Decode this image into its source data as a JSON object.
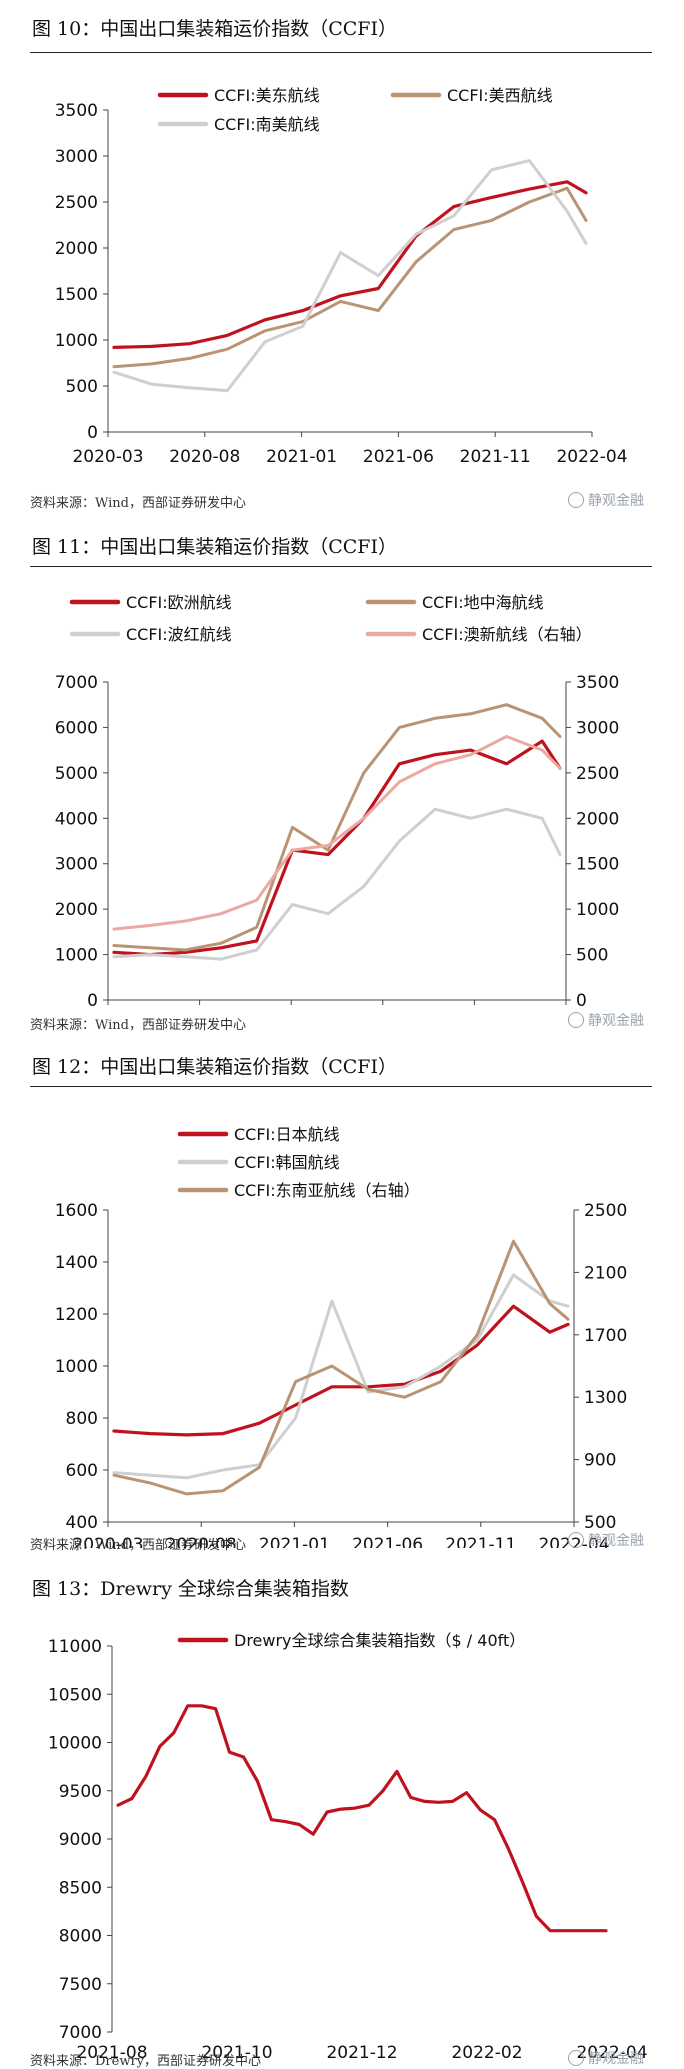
{
  "brand": "静观金融",
  "colors": {
    "red": "#c0121e",
    "tan": "#b89474",
    "gray": "#cfcfcf",
    "pink": "#eca9a1"
  },
  "panels": [
    {
      "title": "图 10：中国出口集装箱运价指数（CCFI）",
      "source": "资料来源：Wind，西部证券研发中心"
    },
    {
      "title": "图 11：中国出口集装箱运价指数（CCFI）",
      "source": "资料来源：Wind，西部证券研发中心"
    },
    {
      "title": "图 12：中国出口集装箱运价指数（CCFI）",
      "source": "资料来源：Wind，西部证券研发中心"
    },
    {
      "title": "图 13：Drewry 全球综合集装箱指数",
      "source": "资料来源：Drewry，西部证券研发中心"
    }
  ],
  "chart_data": [
    {
      "type": "line",
      "title": "图 10：中国出口集装箱运价指数（CCFI）",
      "x_labels": [
        "2020-03",
        "2020-08",
        "2021-01",
        "2021-06",
        "2021-11",
        "2022-04"
      ],
      "ylim": [
        0,
        3500
      ],
      "yticks": [
        0,
        500,
        1000,
        1500,
        2000,
        2500,
        3000,
        3500
      ],
      "x": [
        0,
        2,
        4,
        6,
        8,
        10,
        12,
        14,
        16,
        18,
        20,
        22,
        24,
        25
      ],
      "series": [
        {
          "name": "CCFI:美东航线",
          "color": "red",
          "axis": "left",
          "values": [
            920,
            930,
            960,
            1050,
            1220,
            1320,
            1480,
            1560,
            2130,
            2450,
            2550,
            2640,
            2720,
            2600
          ]
        },
        {
          "name": "CCFI:美西航线",
          "color": "tan",
          "axis": "left",
          "values": [
            710,
            740,
            800,
            900,
            1100,
            1200,
            1420,
            1320,
            1850,
            2200,
            2300,
            2500,
            2650,
            2300
          ]
        },
        {
          "name": "CCFI:南美航线",
          "color": "gray",
          "axis": "left",
          "values": [
            650,
            520,
            480,
            450,
            980,
            1150,
            1950,
            1700,
            2150,
            2350,
            2850,
            2950,
            2400,
            2050
          ]
        }
      ]
    },
    {
      "type": "line",
      "title": "图 11：中国出口集装箱运价指数（CCFI）",
      "x_labels": [
        "2020-03",
        "2020-08",
        "2021-01",
        "2021-06",
        "2021-11",
        "2022-04"
      ],
      "ylim": [
        0,
        7000
      ],
      "yticks": [
        0,
        1000,
        2000,
        3000,
        4000,
        5000,
        6000,
        7000
      ],
      "y2lim": [
        0,
        3500
      ],
      "y2ticks": [
        0,
        500,
        1000,
        1500,
        2000,
        2500,
        3000,
        3500
      ],
      "x": [
        0,
        2,
        4,
        6,
        8,
        10,
        12,
        14,
        16,
        18,
        20,
        22,
        24,
        25
      ],
      "series": [
        {
          "name": "CCFI:欧洲航线",
          "color": "red",
          "axis": "left",
          "values": [
            1050,
            1000,
            1050,
            1150,
            1300,
            3300,
            3200,
            4000,
            5200,
            5400,
            5500,
            5200,
            5700,
            5100
          ]
        },
        {
          "name": "CCFI:地中海航线",
          "color": "tan",
          "axis": "left",
          "values": [
            1200,
            1150,
            1100,
            1250,
            1600,
            3800,
            3300,
            5000,
            6000,
            6200,
            6300,
            6500,
            6200,
            5800
          ]
        },
        {
          "name": "CCFI:波红航线",
          "color": "gray",
          "axis": "left",
          "values": [
            950,
            1000,
            950,
            900,
            1100,
            2100,
            1900,
            2500,
            3500,
            4200,
            4000,
            4200,
            4000,
            3200
          ]
        },
        {
          "name": "CCFI:澳新航线（右轴）",
          "color": "pink",
          "axis": "right",
          "values": [
            780,
            820,
            870,
            950,
            1100,
            1650,
            1700,
            2000,
            2400,
            2600,
            2700,
            2900,
            2750,
            2550
          ]
        }
      ]
    },
    {
      "type": "line",
      "title": "图 12：中国出口集装箱运价指数（CCFI）",
      "x_labels": [
        "2020-03",
        "2020-08",
        "2021-01",
        "2021-06",
        "2021-11",
        "2022-04"
      ],
      "ylim": [
        400,
        1600
      ],
      "yticks": [
        400,
        600,
        800,
        1000,
        1200,
        1400,
        1600
      ],
      "y2lim": [
        500,
        2500
      ],
      "y2ticks": [
        500,
        900,
        1300,
        1700,
        2100,
        2500
      ],
      "x": [
        0,
        2,
        4,
        6,
        8,
        10,
        12,
        14,
        16,
        18,
        20,
        22,
        24,
        25
      ],
      "series": [
        {
          "name": "CCFI:日本航线",
          "color": "red",
          "axis": "left",
          "values": [
            750,
            740,
            735,
            740,
            780,
            850,
            920,
            920,
            930,
            980,
            1080,
            1230,
            1130,
            1160
          ]
        },
        {
          "name": "CCFI:韩国航线",
          "color": "gray",
          "axis": "left",
          "values": [
            590,
            580,
            570,
            600,
            620,
            800,
            1250,
            900,
            920,
            1000,
            1100,
            1350,
            1250,
            1230
          ]
        },
        {
          "name": "CCFI:东南亚航线（右轴）",
          "color": "tan",
          "axis": "right",
          "values": [
            800,
            750,
            680,
            700,
            850,
            1400,
            1500,
            1350,
            1300,
            1400,
            1700,
            2300,
            1900,
            1800
          ]
        }
      ]
    },
    {
      "type": "line",
      "title": "图 13：Drewry 全球综合集装箱指数",
      "x_labels": [
        "2021-08",
        "2021-10",
        "2021-12",
        "2022-02",
        "2022-04"
      ],
      "ylim": [
        7000,
        11000
      ],
      "yticks": [
        7000,
        7500,
        8000,
        8500,
        9000,
        9500,
        10000,
        10500,
        11000
      ],
      "x": [
        0,
        0.5,
        1,
        1.5,
        2,
        2.5,
        3,
        3.5,
        4,
        4.5,
        5,
        5.5,
        6,
        6.5,
        7,
        7.5,
        8,
        8.5,
        9,
        9.5,
        10,
        10.5,
        11,
        11.5,
        12,
        12.5,
        13,
        13.5,
        14,
        14.5,
        15,
        15.5,
        16,
        16.5,
        17,
        17.5
      ],
      "series": [
        {
          "name": "Drewry全球综合集装箱指数（$ / 40ft）",
          "color": "red",
          "axis": "left",
          "values": [
            9350,
            9420,
            9650,
            9960,
            10100,
            10380,
            10380,
            10350,
            9900,
            9850,
            9600,
            9200,
            9180,
            9150,
            9050,
            9280,
            9310,
            9320,
            9350,
            9500,
            9700,
            9430,
            9390,
            9380,
            9390,
            9480,
            9300,
            9200,
            8900,
            8560,
            8200,
            8050,
            8050,
            8050,
            8050,
            8050
          ]
        }
      ]
    }
  ]
}
